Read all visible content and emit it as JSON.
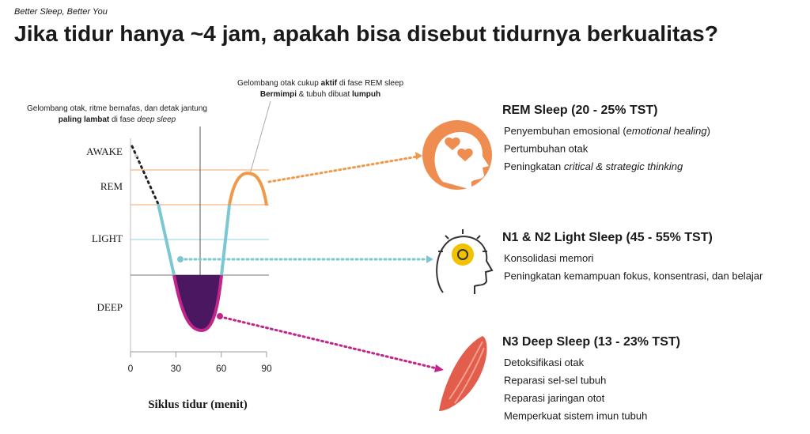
{
  "header": {
    "subtitle": "Better Sleep, Better You",
    "title": "Jika tidur hanya ~4 jam, apakah bisa disebut tidurnya berkualitas?"
  },
  "diagram": {
    "stage_labels": [
      {
        "text": "AWAKE",
        "color": "#1a1a1a"
      },
      {
        "text": "REM",
        "color": "#e8893a"
      },
      {
        "text": "LIGHT",
        "color": "#6fc3d1"
      },
      {
        "text": "DEEP",
        "color": "#1f2a4d"
      }
    ],
    "x_ticks": [
      0,
      30,
      60,
      90
    ],
    "x_label": "Siklus tidur (menit)",
    "annotation_deep": [
      [
        {
          "text": "Gelombang otak, ritme bernafas, dan detak jantung"
        }
      ],
      [
        {
          "text": "paling lambat",
          "bold": true
        },
        {
          "text": " di fase "
        },
        {
          "text": "deep sleep",
          "italic": true
        }
      ]
    ],
    "annotation_rem": [
      [
        {
          "text": "Gelombang otak cukup "
        },
        {
          "text": "aktif",
          "bold": true
        },
        {
          "text": " di fase REM sleep"
        }
      ],
      [
        {
          "text": "Bermimpi",
          "bold": true
        },
        {
          "text": " & tubuh dibuat "
        },
        {
          "text": "lumpuh",
          "bold": true
        }
      ]
    ]
  },
  "sections": [
    {
      "heading": "REM Sleep (20 - 25% TST)",
      "items": [
        [
          {
            "text": "Penyembuhan emosional ("
          },
          {
            "text": "emotional healing",
            "italic": true
          },
          {
            "text": ")"
          }
        ],
        [
          {
            "text": "Pertumbuhan otak"
          }
        ],
        [
          {
            "text": "Peningkatan "
          },
          {
            "text": "critical & strategic thinking",
            "italic": true
          }
        ]
      ]
    },
    {
      "heading": "N1 & N2 Light Sleep (45 - 55% TST)",
      "items": [
        [
          {
            "text": "Konsolidasi memori"
          }
        ],
        [
          {
            "text": "Peningkatan kemampuan fokus, konsentrasi, dan belajar"
          }
        ]
      ]
    },
    {
      "heading": "N3 Deep Sleep (13 - 23% TST)",
      "items": [
        [
          {
            "text": "Detoksifikasi otak"
          }
        ],
        [
          {
            "text": "Reparasi sel-sel tubuh"
          }
        ],
        [
          {
            "text": "Reparasi jaringan otot"
          }
        ],
        [
          {
            "text": "Memperkuat sistem imun tubuh"
          }
        ]
      ]
    }
  ]
}
